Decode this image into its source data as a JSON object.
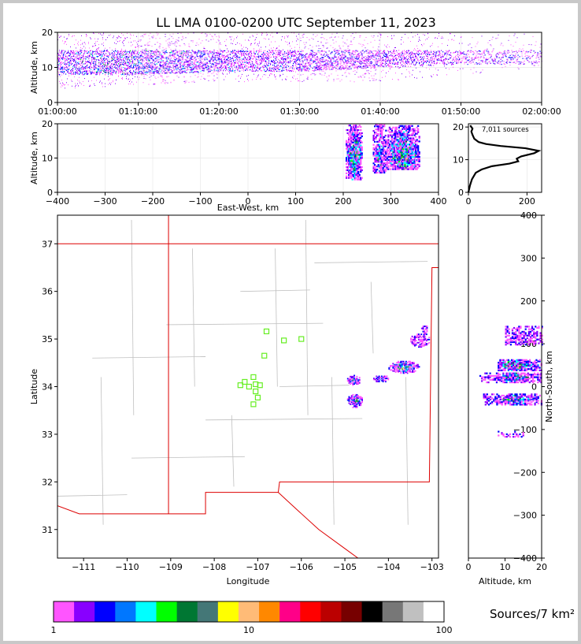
{
  "title": "LL LMA 0100-0200 UTC September 11, 2023",
  "colors": {
    "frame": "#c8c8c8",
    "state_border": "#dd0000",
    "county_border": "#c0c0c0",
    "station": "#66ee22",
    "histogram": "#000000",
    "colorbar": [
      "#ff55ff",
      "#8800ff",
      "#0000ff",
      "#0077ff",
      "#00ffff",
      "#00ff00",
      "#007733",
      "#447777",
      "#ffff00",
      "#ffbb77",
      "#ff8800",
      "#ff0088",
      "#ff0000",
      "#bb0000",
      "#770000",
      "#000000",
      "#777777",
      "#c0c0c0",
      "#ffffff"
    ]
  },
  "chart_data": [
    {
      "id": "time_height",
      "type": "scatter",
      "xlabel": "",
      "ylabel": "Altitude, km",
      "xlim": [
        "01:00:00",
        "02:00:00"
      ],
      "ylim": [
        0,
        20
      ],
      "x_ticks": [
        "01:00:00",
        "01:10:00",
        "01:20:00",
        "01:30:00",
        "01:40:00",
        "01:50:00",
        "02:00:00"
      ],
      "y_ticks": [
        0,
        10,
        20
      ],
      "density_profile": [
        {
          "t": "01:00",
          "core": [
            8,
            15
          ],
          "sparse": [
            4,
            20
          ],
          "level": 0.7
        },
        {
          "t": "01:10",
          "core": [
            8,
            15
          ],
          "sparse": [
            5,
            20
          ],
          "level": 0.8
        },
        {
          "t": "01:20",
          "core": [
            9,
            15
          ],
          "sparse": [
            6,
            20
          ],
          "level": 0.65
        },
        {
          "t": "01:30",
          "core": [
            9,
            15
          ],
          "sparse": [
            6,
            20
          ],
          "level": 0.55
        },
        {
          "t": "01:40",
          "core": [
            10,
            15
          ],
          "sparse": [
            6,
            20
          ],
          "level": 0.5
        },
        {
          "t": "01:50",
          "core": [
            11,
            15
          ],
          "sparse": [
            8,
            20
          ],
          "level": 0.25
        },
        {
          "t": "02:00",
          "core": [
            11,
            15
          ],
          "sparse": [
            10,
            20
          ],
          "level": 0.15
        }
      ]
    },
    {
      "id": "east_west_altitude",
      "type": "heatmap",
      "xlabel": "East-West, km",
      "ylabel": "Altitude, km",
      "xlim": [
        -400,
        400
      ],
      "ylim": [
        0,
        20
      ],
      "x_ticks": [
        -400,
        -300,
        -200,
        -100,
        0,
        100,
        200,
        300,
        400
      ],
      "y_ticks": [
        0,
        10,
        20
      ],
      "clusters": [
        {
          "x": [
            205,
            240
          ],
          "z": [
            4,
            20
          ],
          "peak": 0.9
        },
        {
          "x": [
            262,
            288
          ],
          "z": [
            6,
            20
          ],
          "peak": 0.7
        },
        {
          "x": [
            288,
            360
          ],
          "z": [
            7,
            20
          ],
          "peak": 0.85
        }
      ]
    },
    {
      "id": "altitude_histogram",
      "type": "line",
      "annotation": "7,011 sources",
      "xlim": [
        0,
        250
      ],
      "ylim": [
        0,
        21
      ],
      "x_ticks": [
        0,
        200
      ],
      "y_ticks": [
        0,
        10,
        20
      ],
      "points": [
        [
          0,
          0
        ],
        [
          5,
          2
        ],
        [
          12,
          4
        ],
        [
          25,
          6
        ],
        [
          45,
          7
        ],
        [
          80,
          8
        ],
        [
          140,
          8.8
        ],
        [
          170,
          9.5
        ],
        [
          165,
          10.3
        ],
        [
          180,
          11
        ],
        [
          225,
          12
        ],
        [
          240,
          12.7
        ],
        [
          195,
          13.5
        ],
        [
          110,
          14.2
        ],
        [
          60,
          14.8
        ],
        [
          35,
          15.4
        ],
        [
          20,
          16.4
        ],
        [
          14,
          17.6
        ],
        [
          10,
          18.6
        ],
        [
          14,
          19.5
        ],
        [
          6,
          20.5
        ]
      ]
    },
    {
      "id": "plan_view_map",
      "type": "heatmap",
      "xlabel": "Longitude",
      "ylabel": "Latitude",
      "xlim": [
        -111.6,
        -102.85
      ],
      "ylim": [
        30.4,
        37.6
      ],
      "x_ticks": [
        -111,
        -110,
        -109,
        -108,
        -107,
        -106,
        -105,
        -104,
        -103
      ],
      "y_ticks": [
        31,
        32,
        33,
        34,
        35,
        36,
        37
      ],
      "stations": [
        [
          -106.8,
          35.16
        ],
        [
          -106.4,
          34.97
        ],
        [
          -106.0,
          35.0
        ],
        [
          -106.85,
          34.65
        ],
        [
          -107.1,
          34.2
        ],
        [
          -107.3,
          34.1
        ],
        [
          -107.2,
          34.0
        ],
        [
          -107.05,
          34.05
        ],
        [
          -107.4,
          34.03
        ],
        [
          -106.95,
          34.03
        ],
        [
          -107.05,
          33.9
        ],
        [
          -107.0,
          33.77
        ],
        [
          -107.1,
          33.63
        ]
      ],
      "clusters": [
        {
          "lon": [
            -104.95,
            -104.65
          ],
          "lat": [
            34.05,
            34.25
          ],
          "peak": 0.85
        },
        {
          "lon": [
            -104.95,
            -104.6
          ],
          "lat": [
            33.58,
            33.85
          ],
          "peak": 0.8
        },
        {
          "lon": [
            -104.35,
            -104.0
          ],
          "lat": [
            34.1,
            34.25
          ],
          "peak": 0.7
        },
        {
          "lon": [
            -104.0,
            -103.3
          ],
          "lat": [
            34.3,
            34.55
          ],
          "peak": 0.95
        },
        {
          "lon": [
            -103.5,
            -103.05
          ],
          "lat": [
            34.85,
            35.15
          ],
          "peak": 0.45
        },
        {
          "lon": [
            -103.25,
            -103.1
          ],
          "lat": [
            35.15,
            35.3
          ],
          "peak": 0.3
        }
      ]
    },
    {
      "id": "altitude_north_south",
      "type": "heatmap",
      "xlabel": "Altitude, km",
      "ylabel": "North-South, km",
      "xlim": [
        0,
        20
      ],
      "ylim": [
        -400,
        400
      ],
      "x_ticks": [
        0,
        10,
        20
      ],
      "y_ticks": [
        -400,
        -300,
        -200,
        -100,
        0,
        100,
        200,
        300,
        400
      ],
      "clusters": [
        {
          "z": [
            10,
            20
          ],
          "y": [
            100,
            145
          ],
          "peak": 0.3
        },
        {
          "z": [
            8,
            20
          ],
          "y": [
            40,
            65
          ],
          "peak": 0.95
        },
        {
          "z": [
            3,
            20
          ],
          "y": [
            12,
            35
          ],
          "peak": 0.85
        },
        {
          "z": [
            4,
            20
          ],
          "y": [
            -40,
            -15
          ],
          "peak": 0.8
        },
        {
          "z": [
            8,
            15
          ],
          "y": [
            -115,
            -100
          ],
          "peak": 0.15
        }
      ]
    },
    {
      "id": "colorbar",
      "type": "bar",
      "label": "Sources/7 km²",
      "ticks": [
        "1",
        "10",
        "100"
      ],
      "scale": "log",
      "range": [
        1,
        100
      ]
    }
  ]
}
